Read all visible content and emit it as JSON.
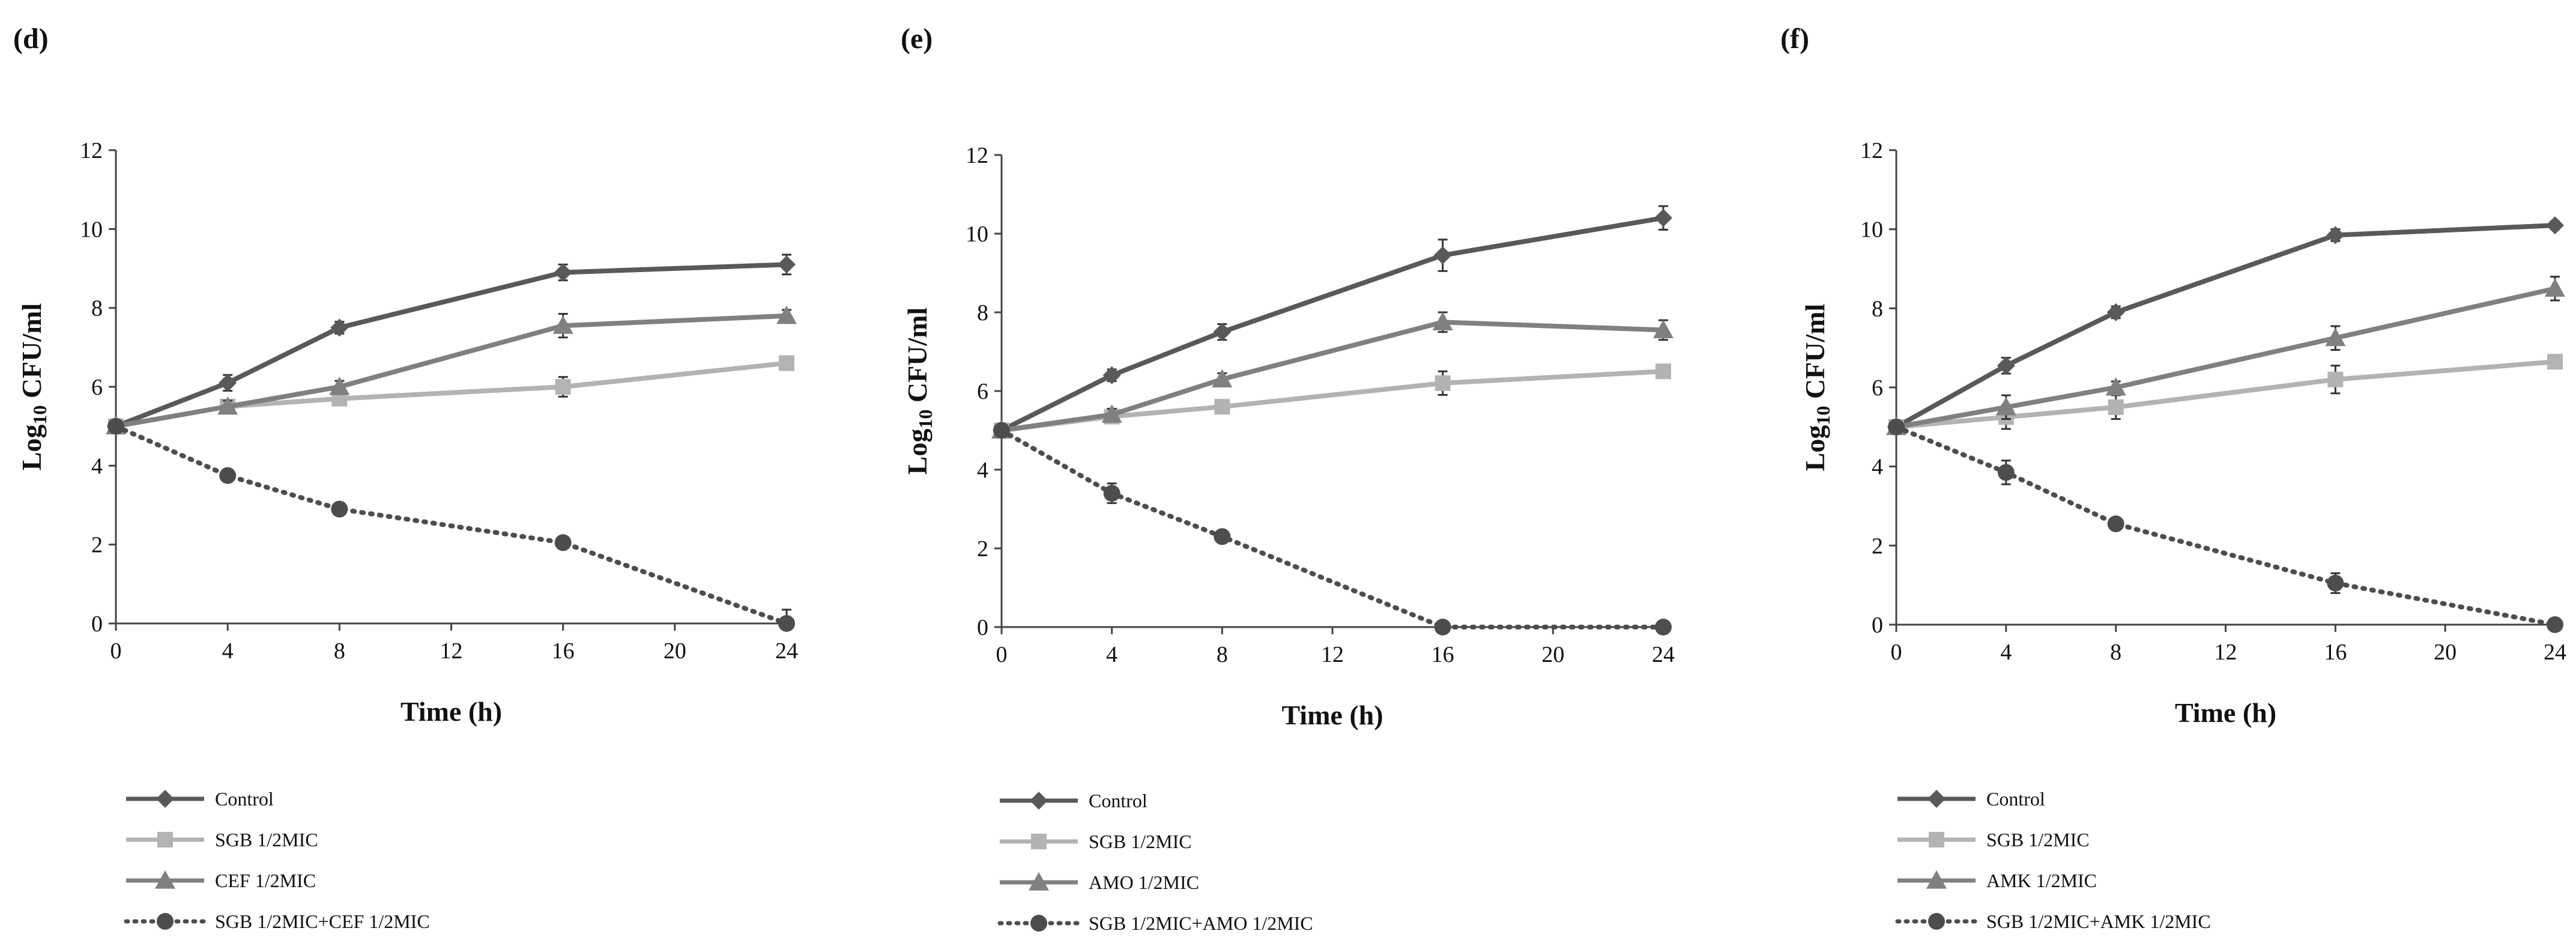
{
  "chart_data": [
    {
      "type": "line",
      "panel_label": "(d)",
      "xlabel": "Time (h)",
      "ylabel_prefix": "Log",
      "ylabel_sub": "10",
      "ylabel_suffix": " CFU/ml",
      "xlim": [
        0,
        24
      ],
      "ylim": [
        0,
        12
      ],
      "xticks": [
        0,
        4,
        8,
        12,
        16,
        20,
        24
      ],
      "yticks": [
        0,
        2,
        4,
        6,
        8,
        10,
        12
      ],
      "legend_position": "bottom-left",
      "series": [
        {
          "name": "Control",
          "marker": "diamond",
          "color": "#595959",
          "dashed": false,
          "x": [
            0,
            4,
            8,
            16,
            24
          ],
          "y": [
            5.0,
            6.1,
            7.5,
            8.9,
            9.1
          ],
          "err": [
            0.1,
            0.2,
            0.15,
            0.2,
            0.25
          ]
        },
        {
          "name": "SGB 1/2MIC",
          "marker": "square",
          "color": "#b3b3b3",
          "dashed": false,
          "x": [
            0,
            4,
            8,
            16,
            24
          ],
          "y": [
            5.0,
            5.5,
            5.7,
            6.0,
            6.6
          ],
          "err": [
            0.1,
            0.15,
            0.15,
            0.25,
            0.15
          ]
        },
        {
          "name": "CEF 1/2MIC",
          "marker": "triangle",
          "color": "#808080",
          "dashed": false,
          "x": [
            0,
            4,
            8,
            16,
            24
          ],
          "y": [
            5.0,
            5.5,
            6.0,
            7.55,
            7.8
          ],
          "err": [
            0.1,
            0.15,
            0.15,
            0.3,
            0.15
          ]
        },
        {
          "name": "SGB 1/2MIC+CEF 1/2MIC",
          "marker": "circle",
          "color": "#4d4d4d",
          "dashed": true,
          "x": [
            0,
            4,
            8,
            16,
            24
          ],
          "y": [
            5.0,
            3.75,
            2.9,
            2.05,
            0.0
          ],
          "err": [
            0.1,
            0.15,
            0.1,
            0.15,
            0.35
          ]
        }
      ]
    },
    {
      "type": "line",
      "panel_label": "(e)",
      "xlabel": "Time (h)",
      "ylabel_prefix": "Log",
      "ylabel_sub": "10",
      "ylabel_suffix": " CFU/ml",
      "xlim": [
        0,
        24
      ],
      "ylim": [
        0,
        12
      ],
      "xticks": [
        0,
        4,
        8,
        12,
        16,
        20,
        24
      ],
      "yticks": [
        0,
        2,
        4,
        6,
        8,
        10,
        12
      ],
      "legend_position": "bottom-left",
      "series": [
        {
          "name": "Control",
          "marker": "diamond",
          "color": "#595959",
          "dashed": false,
          "x": [
            0,
            4,
            8,
            16,
            24
          ],
          "y": [
            5.0,
            6.4,
            7.5,
            9.45,
            10.4
          ],
          "err": [
            0.1,
            0.15,
            0.2,
            0.4,
            0.3
          ]
        },
        {
          "name": "SGB 1/2MIC",
          "marker": "square",
          "color": "#b3b3b3",
          "dashed": false,
          "x": [
            0,
            4,
            8,
            16,
            24
          ],
          "y": [
            5.0,
            5.35,
            5.6,
            6.2,
            6.5
          ],
          "err": [
            0.1,
            0.15,
            0.15,
            0.3,
            0.15
          ]
        },
        {
          "name": "AMO 1/2MIC",
          "marker": "triangle",
          "color": "#808080",
          "dashed": false,
          "x": [
            0,
            4,
            8,
            16,
            24
          ],
          "y": [
            5.0,
            5.4,
            6.3,
            7.75,
            7.55
          ],
          "err": [
            0.1,
            0.15,
            0.15,
            0.25,
            0.25
          ]
        },
        {
          "name": "SGB 1/2MIC+AMO 1/2MIC",
          "marker": "circle",
          "color": "#4d4d4d",
          "dashed": true,
          "x": [
            0,
            4,
            8,
            16,
            24
          ],
          "y": [
            5.0,
            3.4,
            2.3,
            0.0,
            0.0
          ],
          "err": [
            0.1,
            0.25,
            0.1,
            0.05,
            0.05
          ]
        }
      ]
    },
    {
      "type": "line",
      "panel_label": "(f)",
      "xlabel": "Time (h)",
      "ylabel_prefix": "Log",
      "ylabel_sub": "10",
      "ylabel_suffix": " CFU/ml",
      "xlim": [
        0,
        24
      ],
      "ylim": [
        0,
        12
      ],
      "xticks": [
        0,
        4,
        8,
        12,
        16,
        20,
        24
      ],
      "yticks": [
        0,
        2,
        4,
        6,
        8,
        10,
        12
      ],
      "legend_position": "bottom-left",
      "series": [
        {
          "name": "Control",
          "marker": "diamond",
          "color": "#595959",
          "dashed": false,
          "x": [
            0,
            4,
            8,
            16,
            24
          ],
          "y": [
            5.0,
            6.55,
            7.9,
            9.85,
            10.1
          ],
          "err": [
            0.1,
            0.2,
            0.15,
            0.15,
            0.1
          ]
        },
        {
          "name": "SGB 1/2MIC",
          "marker": "square",
          "color": "#b3b3b3",
          "dashed": false,
          "x": [
            0,
            4,
            8,
            16,
            24
          ],
          "y": [
            5.0,
            5.25,
            5.5,
            6.2,
            6.65
          ],
          "err": [
            0.1,
            0.3,
            0.3,
            0.35,
            0.15
          ]
        },
        {
          "name": "AMK 1/2MIC",
          "marker": "triangle",
          "color": "#808080",
          "dashed": false,
          "x": [
            0,
            4,
            8,
            16,
            24
          ],
          "y": [
            5.0,
            5.5,
            6.0,
            7.25,
            8.5
          ],
          "err": [
            0.1,
            0.3,
            0.15,
            0.3,
            0.3
          ]
        },
        {
          "name": "SGB 1/2MIC+AMK 1/2MIC",
          "marker": "circle",
          "color": "#4d4d4d",
          "dashed": true,
          "x": [
            0,
            4,
            8,
            16,
            24
          ],
          "y": [
            5.0,
            3.85,
            2.55,
            1.05,
            0.0
          ],
          "err": [
            0.1,
            0.3,
            0.15,
            0.25,
            0.15
          ]
        }
      ]
    }
  ]
}
